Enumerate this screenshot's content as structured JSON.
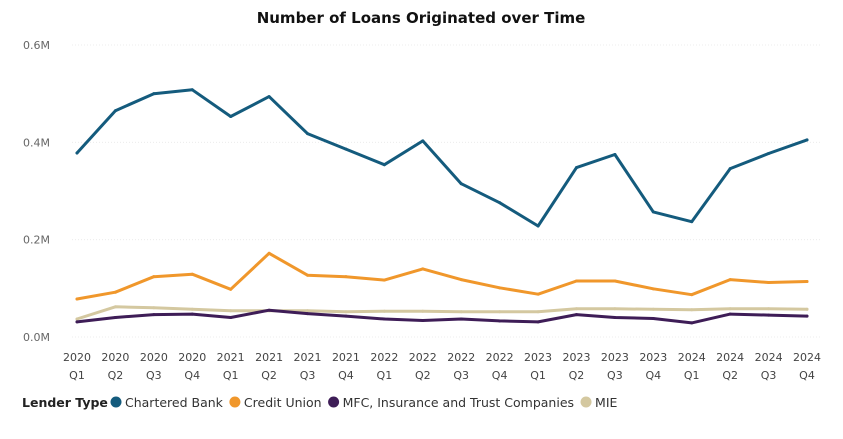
{
  "chart_data": {
    "type": "line",
    "title": "Number of Loans Originated over Time",
    "xlabel": "",
    "ylabel": "",
    "ylim": [
      0,
      600000
    ],
    "y_ticks": [
      {
        "value": 0,
        "label": "0.0M"
      },
      {
        "value": 200000,
        "label": "0.2M"
      },
      {
        "value": 400000,
        "label": "0.4M"
      },
      {
        "value": 600000,
        "label": "0.6M"
      }
    ],
    "grid": true,
    "legend_position": "bottom",
    "legend_title": "Lender Type",
    "categories": [
      {
        "year": "2020",
        "quarter": "Q1"
      },
      {
        "year": "2020",
        "quarter": "Q2"
      },
      {
        "year": "2020",
        "quarter": "Q3"
      },
      {
        "year": "2020",
        "quarter": "Q4"
      },
      {
        "year": "2021",
        "quarter": "Q1"
      },
      {
        "year": "2021",
        "quarter": "Q2"
      },
      {
        "year": "2021",
        "quarter": "Q3"
      },
      {
        "year": "2021",
        "quarter": "Q4"
      },
      {
        "year": "2022",
        "quarter": "Q1"
      },
      {
        "year": "2022",
        "quarter": "Q2"
      },
      {
        "year": "2022",
        "quarter": "Q3"
      },
      {
        "year": "2022",
        "quarter": "Q4"
      },
      {
        "year": "2023",
        "quarter": "Q1"
      },
      {
        "year": "2023",
        "quarter": "Q2"
      },
      {
        "year": "2023",
        "quarter": "Q3"
      },
      {
        "year": "2023",
        "quarter": "Q4"
      },
      {
        "year": "2024",
        "quarter": "Q1"
      },
      {
        "year": "2024",
        "quarter": "Q2"
      },
      {
        "year": "2024",
        "quarter": "Q3"
      },
      {
        "year": "2024",
        "quarter": "Q4"
      }
    ],
    "series": [
      {
        "name": "Chartered Bank",
        "color": "#145b7d",
        "values": [
          378000,
          465000,
          500000,
          508000,
          453000,
          494000,
          418000,
          386000,
          354000,
          403000,
          315000,
          276000,
          228000,
          348000,
          375000,
          257000,
          237000,
          346000,
          377000,
          405000
        ]
      },
      {
        "name": "Credit Union",
        "color": "#f0972b",
        "values": [
          78000,
          92000,
          124000,
          129000,
          98000,
          172000,
          127000,
          124000,
          117000,
          140000,
          118000,
          101000,
          88000,
          115000,
          115000,
          99000,
          87000,
          118000,
          112000,
          114000
        ]
      },
      {
        "name": "MFC, Insurance and Trust Companies",
        "color": "#3e1d57",
        "values": [
          31000,
          40000,
          46000,
          47000,
          40000,
          55000,
          48000,
          43000,
          37000,
          34000,
          37000,
          33000,
          31000,
          46000,
          40000,
          38000,
          29000,
          47000,
          45000,
          43000
        ]
      },
      {
        "name": "MIE",
        "color": "#d4c8a0",
        "values": [
          37000,
          62000,
          60000,
          57000,
          54000,
          54000,
          54000,
          52000,
          53000,
          53000,
          52000,
          52000,
          52000,
          58000,
          58000,
          57000,
          56000,
          58000,
          58000,
          57000
        ]
      }
    ]
  }
}
